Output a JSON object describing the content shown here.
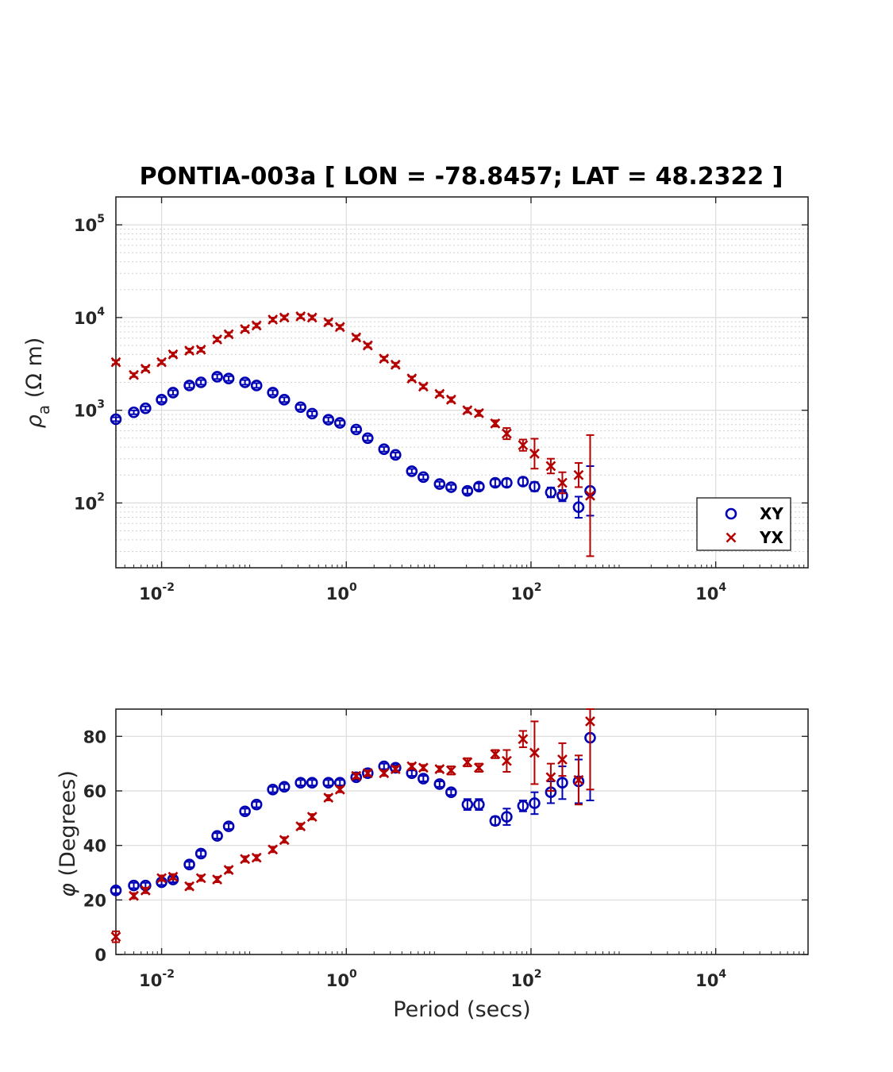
{
  "colors": {
    "XY": "#0000b4",
    "YX": "#b40000",
    "axis": "#262626"
  },
  "chart_data": {
    "type": "scatter",
    "title": "PONTIA-003a [ LON = -78.8457; LAT = 48.2322 ]",
    "xlabel": "Period (secs)",
    "x_scale": "log",
    "xlim": [
      0.0032,
      100000
    ],
    "legend": {
      "position": "bottom-right",
      "entries": [
        "XY",
        "YX"
      ]
    },
    "grid": true,
    "periods": [
      0.0032,
      0.005,
      0.0067,
      0.01,
      0.0133,
      0.02,
      0.0267,
      0.04,
      0.0533,
      0.08,
      0.1067,
      0.16,
      0.2133,
      0.32,
      0.4267,
      0.64,
      0.8533,
      1.28,
      1.7067,
      2.56,
      3.4133,
      5.12,
      6.8267,
      10.24,
      13.6533,
      20.48,
      27.3067,
      40.96,
      54.6133,
      81.92,
      109.2267,
      163.84,
      218.4533,
      327.68,
      436.9067
    ],
    "panels": [
      {
        "id": "apparent-resistivity",
        "ylabel_main": "ρ",
        "ylabel_sub": "a",
        "ylabel_unit": "(Ω m)",
        "y_scale": "log",
        "ylim": [
          20,
          200000
        ],
        "yticks": [
          100,
          1000,
          10000,
          100000
        ],
        "series": [
          {
            "name": "XY",
            "marker": "circle",
            "values": [
              800,
              950,
              1050,
              1300,
              1550,
              1850,
              2000,
              2300,
              2200,
              2000,
              1850,
              1550,
              1300,
              1080,
              920,
              790,
              730,
              620,
              500,
              380,
              330,
              220,
              190,
              160,
              148,
              135,
              150,
              165,
              165,
              170,
              150,
              130,
              120,
              90,
              135
            ],
            "errors": [
              0.05,
              0.05,
              0.05,
              0.06,
              0.06,
              0.06,
              0.06,
              0.06,
              0.06,
              0.06,
              0.06,
              0.06,
              0.06,
              0.06,
              0.06,
              0.06,
              0.06,
              0.06,
              0.06,
              0.06,
              0.06,
              0.06,
              0.06,
              0.06,
              0.06,
              0.07,
              0.08,
              0.09,
              0.1,
              0.1,
              0.12,
              0.13,
              0.15,
              0.3,
              0.85
            ]
          },
          {
            "name": "YX",
            "marker": "x",
            "values": [
              3300,
              2400,
              2800,
              3300,
              4000,
              4400,
              4500,
              5800,
              6600,
              7500,
              8200,
              9500,
              10000,
              10300,
              10000,
              8900,
              7900,
              6100,
              5000,
              3600,
              3100,
              2200,
              1800,
              1500,
              1300,
              1000,
              930,
              720,
              560,
              420,
              340,
              250,
              165,
              200,
              120
            ],
            "errors": [
              0.05,
              0.05,
              0.05,
              0.05,
              0.05,
              0.05,
              0.05,
              0.05,
              0.05,
              0.05,
              0.05,
              0.05,
              0.05,
              0.05,
              0.05,
              0.05,
              0.05,
              0.05,
              0.05,
              0.05,
              0.05,
              0.05,
              0.05,
              0.05,
              0.06,
              0.06,
              0.07,
              0.08,
              0.15,
              0.15,
              0.45,
              0.2,
              0.3,
              0.35,
              3.5
            ]
          }
        ]
      },
      {
        "id": "phase",
        "ylabel_main": "φ",
        "ylabel_unit": "(Degrees)",
        "y_scale": "linear",
        "ylim": [
          0,
          90
        ],
        "yticks": [
          0,
          20,
          40,
          60,
          80
        ],
        "series": [
          {
            "name": "XY",
            "marker": "circle",
            "values": [
              23.5,
              25.3,
              25.3,
              26.5,
              27.5,
              33,
              37,
              43.5,
              47,
              52.5,
              55,
              60.5,
              61.5,
              63,
              63,
              63,
              63,
              65,
              66.5,
              69,
              68.5,
              66.5,
              64.5,
              62.5,
              59.5,
              55,
              55,
              49,
              50.5,
              54.5,
              55.5,
              59.5,
              63,
              63.5,
              79.5
            ],
            "errors": [
              1,
              1,
              1,
              1,
              1,
              1,
              1,
              1,
              1,
              1,
              1,
              1,
              1,
              1,
              1,
              1,
              1,
              1,
              1,
              1,
              1,
              1,
              1,
              1,
              1,
              2,
              2,
              1.5,
              3,
              2,
              4,
              4,
              6,
              8,
              23
            ]
          },
          {
            "name": "YX",
            "marker": "x",
            "values": [
              6.5,
              21.5,
              23.5,
              28,
              28.5,
              25,
              28,
              27.5,
              31,
              35,
              35.5,
              38.5,
              42,
              47,
              50.5,
              57.5,
              60.5,
              65.5,
              66.5,
              66.5,
              68,
              69,
              68.5,
              68,
              67.5,
              70.5,
              68.5,
              73.5,
              71,
              79,
              74,
              65,
              71.5,
              64,
              85.5
            ],
            "errors": [
              2,
              1,
              1,
              1,
              1,
              1,
              1,
              1,
              1,
              1,
              1,
              1,
              1,
              1,
              1,
              1,
              1,
              1,
              1,
              1,
              1,
              1,
              1,
              1,
              1.5,
              1.5,
              1.5,
              1.5,
              4,
              3,
              11.5,
              5,
              6,
              9,
              25
            ]
          }
        ]
      }
    ]
  }
}
